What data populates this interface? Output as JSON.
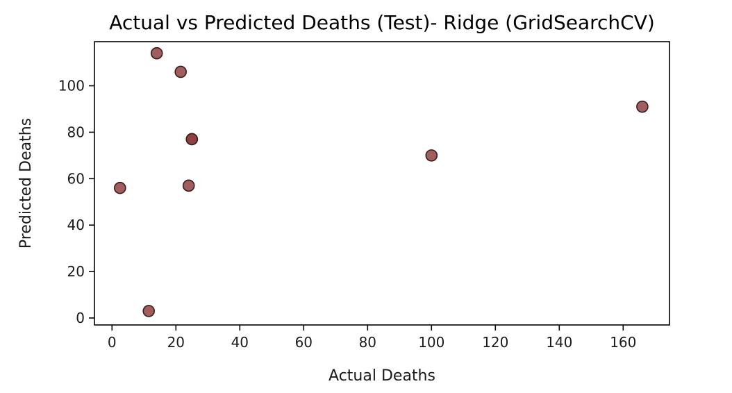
{
  "chart_data": {
    "type": "scatter",
    "title": "Actual vs Predicted Deaths (Test)- Ridge (GridSearchCV)",
    "xlabel": "Actual Deaths",
    "ylabel": "Predicted Deaths",
    "xlim": [
      -5.5,
      174.5
    ],
    "ylim": [
      -3,
      119
    ],
    "xticks": [
      0,
      20,
      40,
      60,
      80,
      100,
      120,
      140,
      160
    ],
    "yticks": [
      0,
      20,
      40,
      60,
      80,
      100
    ],
    "grid": false,
    "legend": "none",
    "marker_color": "#8B3A3A",
    "marker_edge_color": "#3a1a1a",
    "series": [
      {
        "points": [
          {
            "x": 2.5,
            "y": 56
          },
          {
            "x": 11.5,
            "y": 3
          },
          {
            "x": 14,
            "y": 114
          },
          {
            "x": 21.5,
            "y": 106
          },
          {
            "x": 24,
            "y": 57
          },
          {
            "x": 25,
            "y": 77
          },
          {
            "x": 25,
            "y": 77
          },
          {
            "x": 100,
            "y": 70
          },
          {
            "x": 166,
            "y": 91
          }
        ]
      }
    ]
  }
}
